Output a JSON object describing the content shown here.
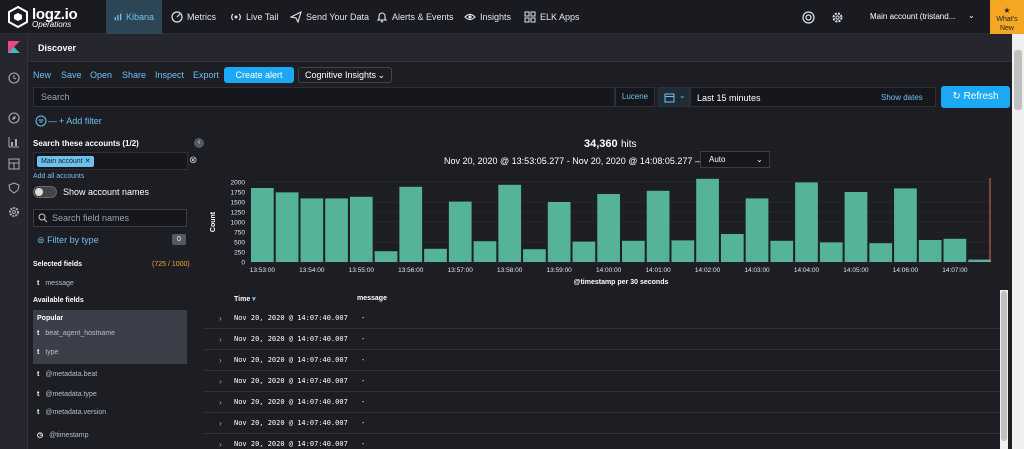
{
  "topnav": {
    "logo": "logz.io",
    "logo_sub": "Operations",
    "items": [
      {
        "label": "Kibana",
        "icon": "bars-chart-icon",
        "active": true
      },
      {
        "label": "Metrics",
        "icon": "gauge-icon"
      },
      {
        "label": "Live Tail",
        "icon": "broadcast-icon"
      },
      {
        "label": "Send Your Data",
        "icon": "paper-plane-icon"
      },
      {
        "label": "Alerts & Events",
        "icon": "bell-icon"
      },
      {
        "label": "Insights",
        "icon": "eye-icon"
      },
      {
        "label": "ELK Apps",
        "icon": "apps-icon"
      }
    ],
    "account": "Main account (tristand...",
    "whats_new": "What's New"
  },
  "discover": {
    "title": "Discover"
  },
  "toolbar": {
    "new": "New",
    "save": "Save",
    "open": "Open",
    "share": "Share",
    "inspect": "Inspect",
    "export": "Export",
    "create_alert": "Create alert",
    "cognitive": "Cognitive Insights"
  },
  "query": {
    "placeholder": "Search",
    "lucene": "Lucene",
    "range": "Last 15 minutes",
    "show_dates": "Show dates",
    "refresh": "Refresh"
  },
  "filter": {
    "add": "+ Add filter"
  },
  "sidebar": {
    "title": "Search these accounts (1/2)",
    "account_pill": "Main account ✕",
    "add_all": "Add all accounts",
    "show_names": "Show account names",
    "search_placeholder": "Search field names",
    "filter_by_type": "Filter by type",
    "filter_count": "0",
    "selected_title": "Selected fields",
    "selected_count": "(725 / 1000)",
    "selected_fields": [
      {
        "type": "t",
        "name": "message"
      }
    ],
    "available_title": "Available fields",
    "popular_title": "Popular",
    "popular_fields": [
      {
        "type": "t",
        "name": "beat_agent_hostname"
      },
      {
        "type": "t",
        "name": "type"
      }
    ],
    "other_fields": [
      {
        "type": "t",
        "name": "@metadata.beat"
      },
      {
        "type": "t",
        "name": "@metadata.type"
      },
      {
        "type": "t",
        "name": "@metadata.version"
      },
      {
        "type": "◷",
        "name": "@timestamp"
      }
    ]
  },
  "hits": {
    "count": "34,360",
    "label": "hits",
    "range": "Nov 20, 2020 @ 13:53:05.277 - Nov 20, 2020 @ 14:08:05.277 —",
    "interval": "Auto"
  },
  "chart_data": {
    "type": "bar",
    "title": "",
    "xlabel": "@timestamp per 30 seconds",
    "ylabel": "Count",
    "ylim": [
      0,
      2000
    ],
    "yticks": [
      0,
      250,
      500,
      750,
      1000,
      1250,
      1500,
      1750,
      2000
    ],
    "xticks": [
      "13:53:00",
      "13:54:00",
      "13:55:00",
      "13:56:00",
      "13:57:00",
      "13:58:00",
      "13:59:00",
      "14:00:00",
      "14:01:00",
      "14:02:00",
      "14:03:00",
      "14:04:00",
      "14:05:00",
      "14:06:00",
      "14:07:00"
    ],
    "values": [
      1850,
      1740,
      1590,
      1590,
      1630,
      270,
      1880,
      330,
      1510,
      520,
      1930,
      320,
      1500,
      510,
      1700,
      530,
      1780,
      540,
      2080,
      700,
      1590,
      530,
      1990,
      490,
      1750,
      470,
      1840,
      550,
      580,
      60
    ],
    "bar_color": "#54b399"
  },
  "table": {
    "col_time": "Time",
    "col_message": "message",
    "rows": [
      {
        "time": "Nov 20, 2020 @ 14:07:40.007",
        "message": "-"
      },
      {
        "time": "Nov 20, 2020 @ 14:07:40.007",
        "message": "-"
      },
      {
        "time": "Nov 20, 2020 @ 14:07:40.007",
        "message": "-"
      },
      {
        "time": "Nov 20, 2020 @ 14:07:40.007",
        "message": "-"
      },
      {
        "time": "Nov 20, 2020 @ 14:07:40.007",
        "message": "-"
      },
      {
        "time": "Nov 20, 2020 @ 14:07:40.007",
        "message": "-"
      },
      {
        "time": "Nov 20, 2020 @ 14:07:40.007",
        "message": "-"
      }
    ]
  }
}
